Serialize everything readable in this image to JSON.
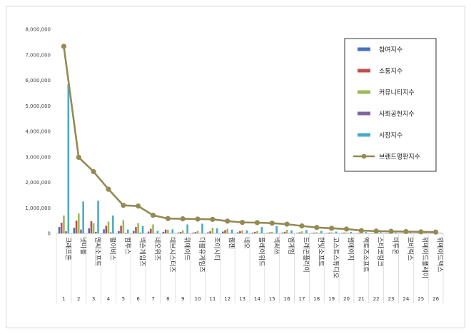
{
  "chart_data": {
    "type": "bar",
    "title": "",
    "xlabel": "",
    "ylabel": "",
    "ylim": [
      0,
      8000000
    ],
    "yticks": [
      "0",
      "1,000,000",
      "2,000,000",
      "3,000,000",
      "4,000,000",
      "5,000,000",
      "6,000,000",
      "7,000,000",
      "8,000,000"
    ],
    "yticks_values": [
      0,
      1000000,
      2000000,
      3000000,
      4000000,
      5000000,
      6000000,
      7000000,
      8000000
    ],
    "grid": false,
    "legend_position": "top-right",
    "ranks": [
      "1",
      "2",
      "3",
      "4",
      "5",
      "6",
      "7",
      "8",
      "9",
      "10",
      "11",
      "12",
      "13",
      "14",
      "15",
      "16",
      "17",
      "18",
      "19",
      "20",
      "21",
      "22",
      "23",
      "24",
      "25",
      "26"
    ],
    "categories": [
      "크래프톤",
      "넷마블",
      "엔씨소프트",
      "펄어비스",
      "컴투스",
      "넥슨게임즈",
      "네오위즈",
      "데브시스터즈",
      "위메이드",
      "더블유게임즈",
      "조이시티",
      "웹젠",
      "네오",
      "플레이위드",
      "넥써쓰",
      "엠게임",
      "드래곤플라이",
      "한빛소프트",
      "고스트스튜디오",
      "썸에이지",
      "액토즈소프트",
      "스타코링크",
      "미투온",
      "모비릭스",
      "위메이드플레이",
      "위메이드맥스"
    ],
    "series": [
      {
        "name": "참여지수",
        "color": "#4472c4",
        "kind": "bar",
        "values": [
          250000,
          220000,
          200000,
          160000,
          90000,
          100000,
          70000,
          60000,
          30000,
          30000,
          40000,
          70000,
          40000,
          30000,
          20000,
          30000,
          20000,
          15000,
          15000,
          15000,
          10000,
          8000,
          8000,
          6000,
          5000,
          5000
        ]
      },
      {
        "name": "소통지수",
        "color": "#c0504d",
        "kind": "bar",
        "values": [
          420000,
          500000,
          480000,
          300000,
          300000,
          250000,
          180000,
          150000,
          60000,
          50000,
          80000,
          130000,
          90000,
          60000,
          40000,
          60000,
          40000,
          30000,
          30000,
          30000,
          20000,
          15000,
          15000,
          12000,
          10000,
          10000
        ]
      },
      {
        "name": "커뮤니티지수",
        "color": "#9bbb59",
        "kind": "bar",
        "values": [
          700000,
          780000,
          400000,
          460000,
          520000,
          400000,
          350000,
          140000,
          120000,
          100000,
          220000,
          180000,
          120000,
          90000,
          60000,
          140000,
          80000,
          40000,
          40000,
          35000,
          30000,
          25000,
          20000,
          18000,
          15000,
          12000
        ]
      },
      {
        "name": "사회공헌지수",
        "color": "#8064a2",
        "kind": "bar",
        "values": [
          80000,
          150000,
          60000,
          40000,
          20000,
          30000,
          10000,
          10000,
          5000,
          5000,
          5000,
          10000,
          5000,
          5000,
          5000,
          5000,
          3000,
          3000,
          3000,
          3000,
          2000,
          2000,
          2000,
          2000,
          2000,
          2000
        ]
      },
      {
        "name": "시장지수",
        "color": "#4bacc6",
        "kind": "bar",
        "values": [
          5850000,
          1250000,
          1280000,
          700000,
          150000,
          290000,
          100000,
          160000,
          350000,
          380000,
          200000,
          150000,
          120000,
          250000,
          280000,
          120000,
          130000,
          100000,
          70000,
          60000,
          50000,
          40000,
          35000,
          30000,
          25000,
          20000
        ]
      },
      {
        "name": "브랜드평판지수",
        "color": "#948a54",
        "kind": "line",
        "values": [
          7330000,
          2980000,
          2420000,
          1730000,
          1100000,
          1070000,
          710000,
          580000,
          570000,
          560000,
          550000,
          480000,
          430000,
          420000,
          400000,
          360000,
          290000,
          230000,
          200000,
          170000,
          110000,
          90000,
          80000,
          70000,
          60000,
          50000
        ]
      }
    ]
  }
}
